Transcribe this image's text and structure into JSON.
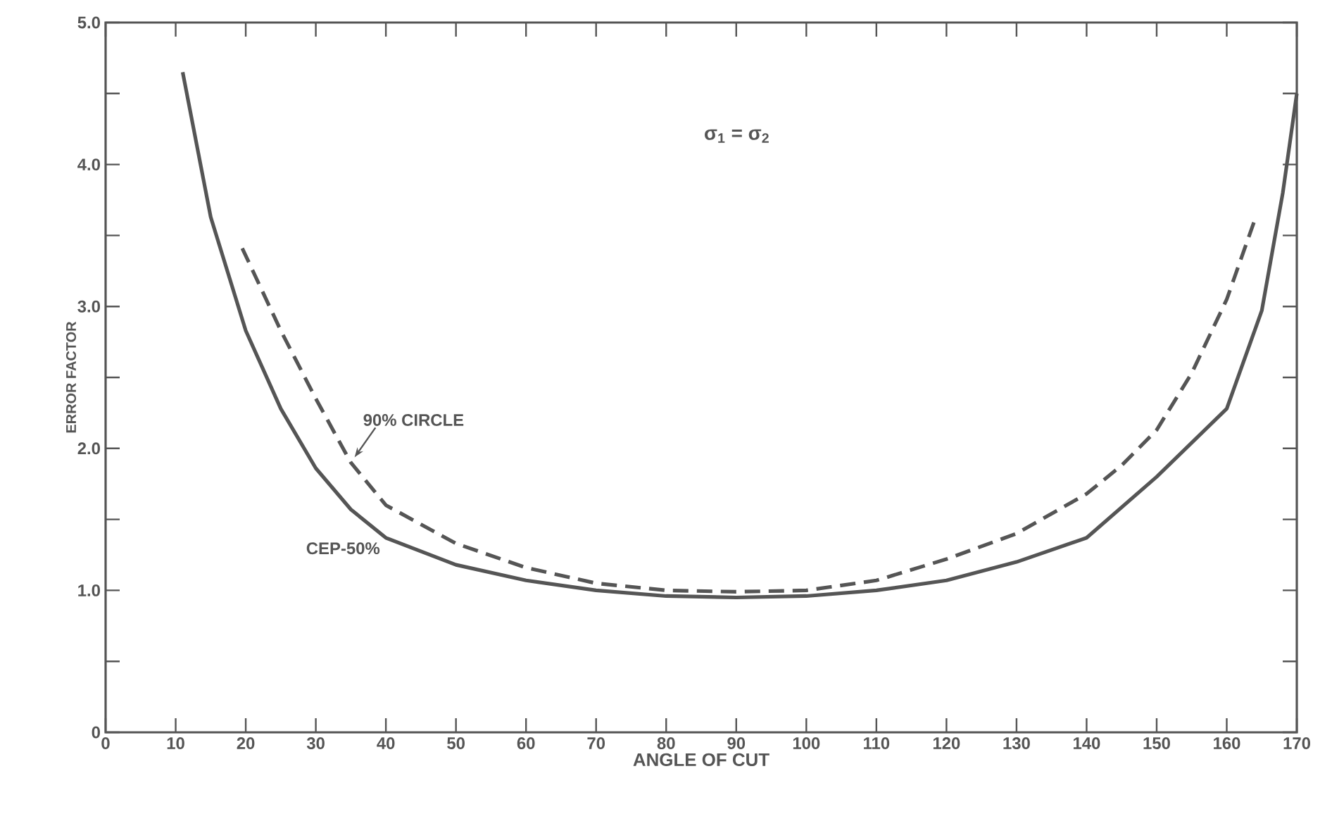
{
  "chart_data": {
    "type": "line",
    "xlabel": "ANGLE OF CUT",
    "ylabel": "ERROR FACTOR",
    "annotations": [
      "σ$_{1}$ = σ$_{2}$"
    ],
    "xlim": [
      0,
      170
    ],
    "ylim": [
      0,
      5
    ],
    "xticks": [
      0,
      10,
      20,
      30,
      40,
      50,
      60,
      70,
      80,
      90,
      100,
      110,
      120,
      130,
      140,
      150,
      160,
      170
    ],
    "yticks": [
      0,
      {
        "value": 0.5,
        "label": null
      },
      {
        "value": 1,
        "label": "1.0"
      },
      {
        "value": 1.5,
        "label": null
      },
      {
        "value": 2,
        "label": "2.0"
      },
      {
        "value": 2.5,
        "label": null
      },
      {
        "value": 3,
        "label": "3.0"
      },
      {
        "value": 3.5,
        "label": null
      },
      {
        "value": 4,
        "label": "4.0"
      },
      {
        "value": 4.5,
        "label": null
      },
      {
        "value": 5,
        "label": "5.0"
      }
    ],
    "grid": false,
    "legend": false,
    "marker": "none",
    "series": [
      {
        "name": "CEP-50%",
        "color": "#555555",
        "line_style": "solid",
        "x": [
          11,
          15,
          20,
          25,
          30,
          35,
          40,
          50,
          60,
          70,
          80,
          90,
          100,
          110,
          120,
          130,
          140,
          150,
          160,
          165,
          168,
          170
        ],
        "values": [
          4.65,
          3.63,
          2.83,
          2.28,
          1.86,
          1.57,
          1.37,
          1.18,
          1.07,
          1.0,
          0.96,
          0.95,
          0.96,
          1.0,
          1.07,
          1.2,
          1.37,
          1.8,
          2.28,
          2.97,
          3.8,
          4.5
        ]
      },
      {
        "name": "90% CIRCLE",
        "color": "#555555",
        "line_style": "dashed",
        "x": [
          19.5,
          25,
          30,
          35,
          40,
          50,
          60,
          70,
          80,
          90,
          100,
          110,
          120,
          130,
          140,
          145,
          150,
          155,
          160,
          164
        ],
        "values": [
          3.41,
          2.83,
          2.35,
          1.9,
          1.6,
          1.33,
          1.16,
          1.05,
          1.0,
          0.99,
          1.0,
          1.07,
          1.22,
          1.4,
          1.68,
          1.88,
          2.13,
          2.53,
          3.05,
          3.61
        ]
      }
    ]
  }
}
